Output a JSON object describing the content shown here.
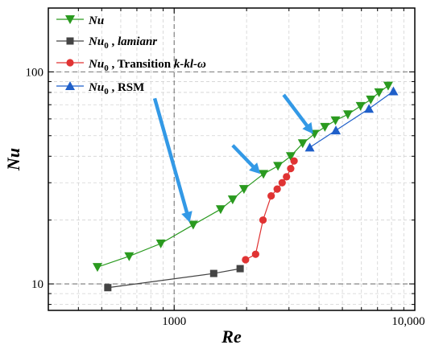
{
  "chart_data": {
    "type": "scatter",
    "xlabel": "Re",
    "ylabel": "Nu",
    "xscale": "log",
    "yscale": "log",
    "xlim": [
      300,
      10000
    ],
    "ylim": [
      7.5,
      200
    ],
    "x_ticks": [
      1000,
      10000
    ],
    "x_tick_labels": [
      "1000",
      "10,000"
    ],
    "y_ticks": [
      10,
      100
    ],
    "y_tick_labels": [
      "10",
      "100"
    ],
    "grid": "minor dashed gray",
    "reference_lines": {
      "vertical_x": 1000,
      "horizontal_y": [
        10,
        100
      ]
    },
    "legend_placement": "top-left",
    "series": [
      {
        "name": "Nu",
        "color": "#2a9a1f",
        "marker": "triangle-down",
        "x": [
          480,
          650,
          880,
          1200,
          1560,
          1750,
          1950,
          2350,
          2700,
          3050,
          3420,
          3830,
          4230,
          4680,
          5270,
          5950,
          6560,
          7100,
          7750
        ],
        "y": [
          12,
          13.5,
          15.5,
          19,
          22.5,
          25,
          28,
          33,
          36,
          40,
          46,
          51,
          55,
          59,
          63,
          69,
          74,
          80,
          86
        ]
      },
      {
        "name": "Nu0 , lamianr",
        "color": "#444444",
        "marker": "square",
        "x": [
          530,
          1460,
          1880
        ],
        "y": [
          9.6,
          11.2,
          11.8
        ]
      },
      {
        "name": "Nu0 , Transition k-kl-ω",
        "color": "#e03333",
        "marker": "circle",
        "x": [
          1980,
          2180,
          2340,
          2530,
          2680,
          2810,
          2930,
          3050,
          3150
        ],
        "y": [
          13,
          13.8,
          20,
          26,
          28,
          30,
          32,
          35,
          38
        ]
      },
      {
        "name": "Nu0 , RSM",
        "color": "#1f5fc9",
        "marker": "triangle-up",
        "x": [
          3660,
          4700,
          6450,
          8150
        ],
        "y": [
          44,
          53,
          67,
          81
        ]
      }
    ],
    "annotations": [
      {
        "type": "arrow",
        "color": "#3399e6",
        "from": [
          830,
          75
        ],
        "to": [
          1160,
          19.5
        ]
      },
      {
        "type": "arrow",
        "color": "#3399e6",
        "from": [
          1750,
          45
        ],
        "to": [
          2280,
          33
        ]
      },
      {
        "type": "arrow",
        "color": "#3399e6",
        "from": [
          2850,
          78
        ],
        "to": [
          3780,
          51
        ]
      }
    ]
  },
  "legend": {
    "items": [
      {
        "main": "Nu",
        "sub": "",
        "rest": ""
      },
      {
        "main": "Nu",
        "sub": "0",
        "rest_plain": " , ",
        "rest_italic": "lamianr"
      },
      {
        "main": "Nu",
        "sub": "0",
        "rest_plain": " , Transition ",
        "rest_italic": "k-kl-ω"
      },
      {
        "main": "Nu",
        "sub": "0",
        "rest_plain": " , RSM",
        "rest_italic": ""
      }
    ]
  }
}
